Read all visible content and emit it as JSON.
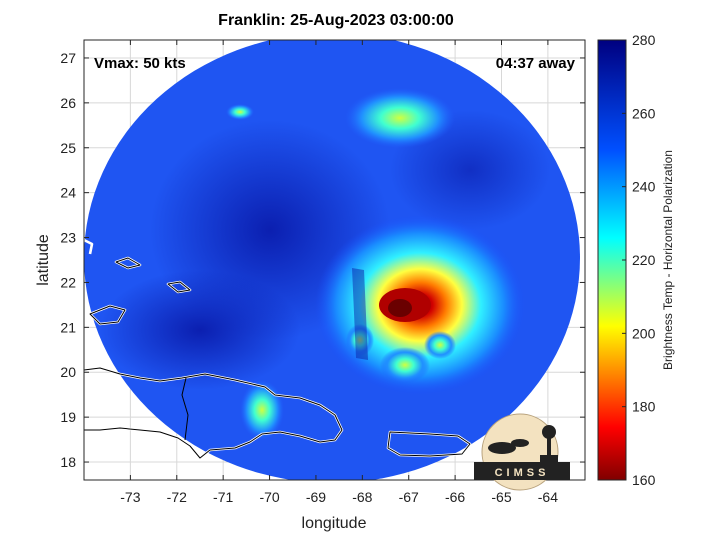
{
  "title": "Franklin: 25-Aug-2023 03:00:00",
  "vmax_label": "Vmax: 50 kts",
  "time_away_label": "04:37 away",
  "xlabel": "longitude",
  "ylabel": "latitude",
  "colorbar_label": "Brightness Temp - Horizontal Polarization",
  "logo_text": "CIMSS",
  "chart_data": {
    "type": "heatmap",
    "xlim": [
      -74,
      -63.2
    ],
    "ylim": [
      17.6,
      27.4
    ],
    "x_ticks": [
      -73,
      -72,
      -71,
      -70,
      -69,
      -68,
      -67,
      -66,
      -65,
      -64
    ],
    "y_ticks": [
      18,
      19,
      20,
      21,
      22,
      23,
      24,
      25,
      26,
      27
    ],
    "colorbar_range": [
      160,
      280
    ],
    "colorbar_ticks": [
      160,
      180,
      200,
      220,
      240,
      260,
      280
    ],
    "grid": true,
    "colormap": "jet",
    "storm_center": {
      "lon": -67.0,
      "lat": 21.3
    }
  }
}
